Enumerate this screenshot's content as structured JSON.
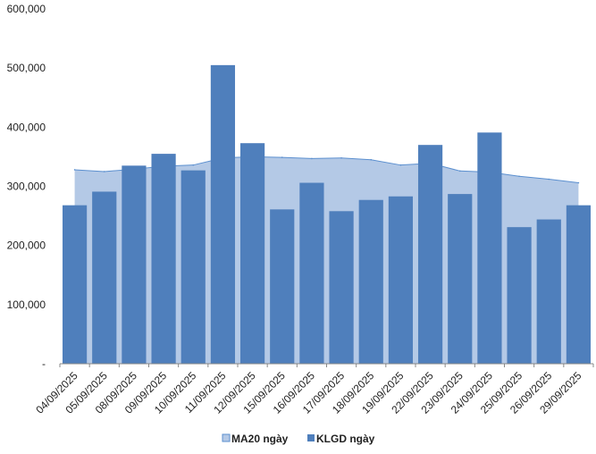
{
  "chart_data": {
    "type": "bar",
    "categories": [
      "04/09/2025",
      "05/09/2025",
      "08/09/2025",
      "09/09/2025",
      "10/09/2025",
      "11/09/2025",
      "12/09/2025",
      "15/09/2025",
      "16/09/2025",
      "17/09/2025",
      "18/09/2025",
      "19/09/2025",
      "22/09/2025",
      "23/09/2025",
      "24/09/2025",
      "25/09/2025",
      "26/09/2025",
      "29/09/2025"
    ],
    "series": [
      {
        "name": "MA20 ngày",
        "kind": "area",
        "color": "#b4c9e6",
        "line_color": "#5b8fcf",
        "values": [
          328000,
          325000,
          329000,
          334000,
          336000,
          348000,
          350000,
          349000,
          347000,
          348000,
          345000,
          336000,
          339000,
          326000,
          324000,
          317000,
          312000,
          306000
        ]
      },
      {
        "name": "KLGD ngày",
        "kind": "bar",
        "color": "#4f7fbc",
        "values": [
          268000,
          291000,
          335000,
          355000,
          327000,
          505000,
          373000,
          261000,
          306000,
          258000,
          277000,
          283000,
          370000,
          287000,
          391000,
          231000,
          244000,
          268000
        ]
      }
    ],
    "ylim": [
      0,
      600000
    ],
    "yticks": [
      "-",
      "100,000",
      "200,000",
      "300,000",
      "400,000",
      "500,000",
      "600,000"
    ],
    "grid": false,
    "legend": "bottom-center"
  }
}
